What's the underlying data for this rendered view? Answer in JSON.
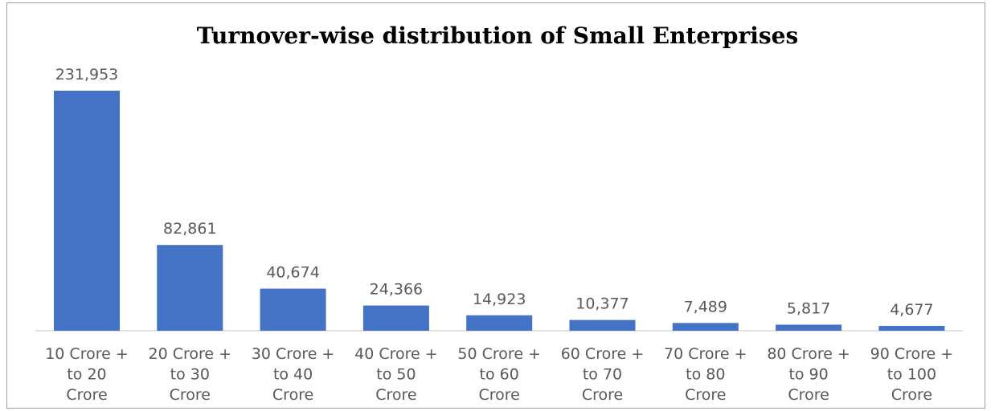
{
  "chart_data": {
    "type": "bar",
    "title": "Turnover-wise distribution of Small Enterprises",
    "categories": [
      [
        "10 Crore +",
        "to 20",
        "Crore"
      ],
      [
        "20 Crore +",
        "to 30",
        "Crore"
      ],
      [
        "30 Crore +",
        "to 40",
        "Crore"
      ],
      [
        "40 Crore +",
        "to 50",
        "Crore"
      ],
      [
        "50 Crore +",
        "to 60",
        "Crore"
      ],
      [
        "60 Crore +",
        "to 70",
        "Crore"
      ],
      [
        "70 Crore +",
        "to 80",
        "Crore"
      ],
      [
        "80 Crore +",
        "to 90",
        "Crore"
      ],
      [
        "90 Crore +",
        "to 100",
        "Crore"
      ]
    ],
    "values": [
      231953,
      82861,
      40674,
      24366,
      14923,
      10377,
      7489,
      5817,
      4677
    ],
    "value_labels": [
      "231,953",
      "82,861",
      "40,674",
      "24,366",
      "14,923",
      "10,377",
      "7,489",
      "5,817",
      "4,677"
    ],
    "ylim": [
      0,
      231953
    ],
    "grid": false,
    "legend": "none",
    "bar_color": "#4472c4",
    "axis_color": "#d9d9d9"
  }
}
